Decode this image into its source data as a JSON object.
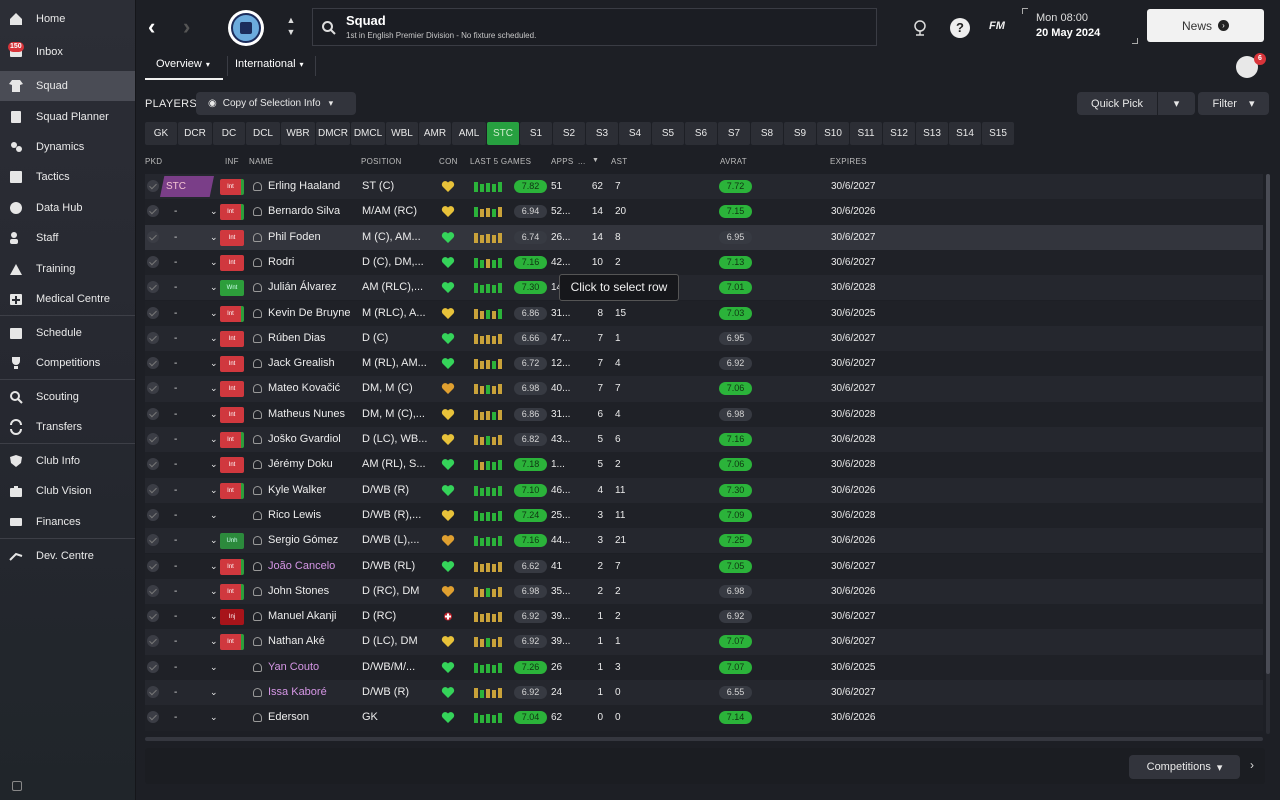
{
  "sidebar": {
    "items": [
      {
        "label": "Home",
        "icon": "home-icon"
      },
      {
        "label": "Inbox",
        "icon": "inbox-icon",
        "badge": "150"
      },
      {
        "label": "Squad",
        "icon": "shirt-icon",
        "active": true
      },
      {
        "label": "Squad Planner",
        "icon": "clipboard-icon"
      },
      {
        "label": "Dynamics",
        "icon": "dynamics-icon"
      },
      {
        "label": "Tactics",
        "icon": "tactics-icon"
      },
      {
        "label": "Data Hub",
        "icon": "data-hub-icon"
      },
      {
        "label": "Staff",
        "icon": "staff-icon"
      },
      {
        "label": "Training",
        "icon": "training-icon"
      },
      {
        "label": "Medical Centre",
        "icon": "medical-icon"
      },
      {
        "label": "Schedule",
        "icon": "calendar-icon"
      },
      {
        "label": "Competitions",
        "icon": "trophy-icon"
      },
      {
        "label": "Scouting",
        "icon": "search-icon"
      },
      {
        "label": "Transfers",
        "icon": "transfer-icon"
      },
      {
        "label": "Club Info",
        "icon": "shield-icon"
      },
      {
        "label": "Club Vision",
        "icon": "briefcase-icon"
      },
      {
        "label": "Finances",
        "icon": "money-icon"
      },
      {
        "label": "Dev. Centre",
        "icon": "dev-centre-icon"
      }
    ]
  },
  "header": {
    "title": "Squad",
    "subtitle": "1st in English Premier Division - No fixture scheduled.",
    "date_line1": "Mon 08:00",
    "date_line2": "20 May 2024",
    "news_label": "News",
    "fm_label": "FM",
    "help_label": "?",
    "avatar_badge": "6"
  },
  "tabs": [
    {
      "label": "Overview"
    },
    {
      "label": "International"
    }
  ],
  "toolbar": {
    "players_label": "PLAYERS",
    "view_label": "Copy of Selection Info",
    "quick_pick_label": "Quick Pick",
    "filter_label": "Filter"
  },
  "positions": [
    "GK",
    "DCR",
    "DC",
    "DCL",
    "WBR",
    "DMCR",
    "DMCL",
    "WBL",
    "AMR",
    "AML",
    "STC",
    "S1",
    "S2",
    "S3",
    "S4",
    "S5",
    "S6",
    "S7",
    "S8",
    "S9",
    "S10",
    "S11",
    "S12",
    "S13",
    "S14",
    "S15"
  ],
  "active_position": "STC",
  "columns": {
    "pkd": "PKD",
    "inf": "INF",
    "name": "NAME",
    "position": "POSITION",
    "con": "CON",
    "last5": "LAST 5 GAMES",
    "apps": "APPS",
    "gls": "...",
    "ast": "AST",
    "avrat": "AVRAT",
    "expires": "EXPIRES"
  },
  "tooltip": "Click to select row",
  "colors": {
    "accent_green": "#2bb33a",
    "int_red": "#d0383e",
    "loan_purple": "#d596e5"
  },
  "players": [
    {
      "sel": "STC",
      "inf": "Int",
      "name": "Erling Haaland",
      "pos": "ST (C)",
      "con": "gold",
      "form": [
        "g",
        "g",
        "g",
        "g",
        "g"
      ],
      "rating": "7.82",
      "rg": true,
      "apps": "51",
      "gls": "62",
      "ast": "7",
      "avrat": "7.72",
      "ag": true,
      "exp": "30/6/2027"
    },
    {
      "sel": "-",
      "inf": "Int",
      "name": "Bernardo Silva",
      "pos": "M/AM (RC)",
      "con": "gold",
      "form": [
        "g",
        "o",
        "o",
        "g",
        "o"
      ],
      "rating": "6.94",
      "rg": false,
      "apps": "52...",
      "gls": "14",
      "ast": "20",
      "avrat": "7.15",
      "ag": true,
      "exp": "30/6/2026"
    },
    {
      "sel": "-",
      "inf": "Int",
      "name": "Phil Foden",
      "pos": "M (C), AM...",
      "con": "green",
      "form": [
        "o",
        "o",
        "o",
        "o",
        "o"
      ],
      "rating": "6.74",
      "rg": false,
      "apps": "26...",
      "gls": "14",
      "ast": "8",
      "avrat": "6.95",
      "ag": false,
      "exp": "30/6/2027"
    },
    {
      "sel": "-",
      "inf": "Int",
      "name": "Rodri",
      "pos": "D (C), DM,...",
      "con": "green",
      "form": [
        "g",
        "g",
        "o",
        "g",
        "g"
      ],
      "rating": "7.16",
      "rg": true,
      "apps": "42...",
      "gls": "10",
      "ast": "2",
      "avrat": "7.13",
      "ag": true,
      "exp": "30/6/2027"
    },
    {
      "sel": "-",
      "inf": "Wnt",
      "name": "Julián Álvarez",
      "pos": "AM (RLC),...",
      "con": "green",
      "form": [
        "g",
        "g",
        "g",
        "g",
        "g"
      ],
      "rating": "7.30",
      "rg": true,
      "apps": "14...",
      "gls": "",
      "ast": "",
      "avrat": "7.01",
      "ag": true,
      "exp": "30/6/2028"
    },
    {
      "sel": "-",
      "inf": "Int",
      "name": "Kevin De Bruyne",
      "pos": "M (RLC), A...",
      "con": "gold",
      "form": [
        "o",
        "o",
        "g",
        "o",
        "g"
      ],
      "rating": "6.86",
      "rg": false,
      "apps": "31...",
      "gls": "8",
      "ast": "15",
      "avrat": "7.03",
      "ag": true,
      "exp": "30/6/2025"
    },
    {
      "sel": "-",
      "inf": "Int",
      "name": "Rúben Dias",
      "pos": "D (C)",
      "con": "green",
      "form": [
        "o",
        "o",
        "o",
        "o",
        "o"
      ],
      "rating": "6.66",
      "rg": false,
      "apps": "47...",
      "gls": "7",
      "ast": "1",
      "avrat": "6.95",
      "ag": false,
      "exp": "30/6/2027"
    },
    {
      "sel": "-",
      "inf": "Int",
      "name": "Jack Grealish",
      "pos": "M (RL), AM...",
      "con": "green",
      "form": [
        "o",
        "o",
        "o",
        "g",
        "o"
      ],
      "rating": "6.72",
      "rg": false,
      "apps": "12...",
      "gls": "7",
      "ast": "4",
      "avrat": "6.92",
      "ag": false,
      "exp": "30/6/2027"
    },
    {
      "sel": "-",
      "inf": "Int",
      "name": "Mateo Kovačić",
      "pos": "DM, M (C)",
      "con": "orange",
      "form": [
        "o",
        "o",
        "g",
        "o",
        "o"
      ],
      "rating": "6.98",
      "rg": false,
      "apps": "40...",
      "gls": "7",
      "ast": "7",
      "avrat": "7.06",
      "ag": true,
      "exp": "30/6/2027"
    },
    {
      "sel": "-",
      "inf": "Int",
      "name": "Matheus Nunes",
      "pos": "DM, M (C),...",
      "con": "gold",
      "form": [
        "o",
        "o",
        "o",
        "g",
        "o"
      ],
      "rating": "6.86",
      "rg": false,
      "apps": "31...",
      "gls": "6",
      "ast": "4",
      "avrat": "6.98",
      "ag": false,
      "exp": "30/6/2028"
    },
    {
      "sel": "-",
      "inf": "Int",
      "name": "Joško Gvardiol",
      "pos": "D (LC), WB...",
      "con": "gold",
      "form": [
        "o",
        "o",
        "g",
        "o",
        "o"
      ],
      "rating": "6.82",
      "rg": false,
      "apps": "43...",
      "gls": "5",
      "ast": "6",
      "avrat": "7.16",
      "ag": true,
      "exp": "30/6/2028"
    },
    {
      "sel": "-",
      "inf": "Int",
      "name": "Jérémy Doku",
      "pos": "AM (RL), S...",
      "con": "green",
      "form": [
        "g",
        "o",
        "g",
        "g",
        "g"
      ],
      "rating": "7.18",
      "rg": true,
      "apps": "1...",
      "gls": "5",
      "ast": "2",
      "avrat": "7.06",
      "ag": true,
      "exp": "30/6/2028"
    },
    {
      "sel": "-",
      "inf": "Int",
      "name": "Kyle Walker",
      "pos": "D/WB (R)",
      "con": "green",
      "form": [
        "g",
        "g",
        "g",
        "g",
        "g"
      ],
      "rating": "7.10",
      "rg": true,
      "apps": "46...",
      "gls": "4",
      "ast": "11",
      "avrat": "7.30",
      "ag": true,
      "exp": "30/6/2026"
    },
    {
      "sel": "-",
      "inf": "",
      "name": "Rico Lewis",
      "pos": "D/WB (R),...",
      "con": "gold",
      "form": [
        "g",
        "g",
        "g",
        "g",
        "g"
      ],
      "rating": "7.24",
      "rg": true,
      "apps": "25...",
      "gls": "3",
      "ast": "11",
      "avrat": "7.09",
      "ag": true,
      "exp": "30/6/2028"
    },
    {
      "sel": "-",
      "inf": "Unh",
      "name": "Sergio Gómez",
      "pos": "D/WB (L),...",
      "con": "orange",
      "form": [
        "g",
        "g",
        "g",
        "g",
        "g"
      ],
      "rating": "7.16",
      "rg": true,
      "apps": "44...",
      "gls": "3",
      "ast": "21",
      "avrat": "7.25",
      "ag": true,
      "exp": "30/6/2026"
    },
    {
      "sel": "-",
      "inf": "Int",
      "name": "João Cancelo",
      "pos": "D/WB (RL)",
      "con": "green",
      "form": [
        "o",
        "o",
        "o",
        "o",
        "o"
      ],
      "rating": "6.62",
      "rg": false,
      "apps": "41",
      "gls": "2",
      "ast": "7",
      "avrat": "7.05",
      "ag": true,
      "exp": "30/6/2027",
      "loan": true
    },
    {
      "sel": "-",
      "inf": "Int",
      "name": "John Stones",
      "pos": "D (RC), DM",
      "con": "orange",
      "form": [
        "o",
        "o",
        "g",
        "o",
        "o"
      ],
      "rating": "6.98",
      "rg": false,
      "apps": "35...",
      "gls": "2",
      "ast": "2",
      "avrat": "6.98",
      "ag": false,
      "exp": "30/6/2026"
    },
    {
      "sel": "-",
      "inf": "Inj",
      "name": "Manuel Akanji",
      "pos": "D (RC)",
      "con": "injured",
      "form": [
        "o",
        "o",
        "o",
        "o",
        "o"
      ],
      "rating": "6.92",
      "rg": false,
      "apps": "39...",
      "gls": "1",
      "ast": "2",
      "avrat": "6.92",
      "ag": false,
      "exp": "30/6/2027"
    },
    {
      "sel": "-",
      "inf": "Int",
      "name": "Nathan Aké",
      "pos": "D (LC), DM",
      "con": "gold",
      "form": [
        "o",
        "o",
        "g",
        "o",
        "o"
      ],
      "rating": "6.92",
      "rg": false,
      "apps": "39...",
      "gls": "1",
      "ast": "1",
      "avrat": "7.07",
      "ag": true,
      "exp": "30/6/2027"
    },
    {
      "sel": "-",
      "inf": "",
      "name": "Yan Couto",
      "pos": "D/WB/M/...",
      "con": "green",
      "form": [
        "g",
        "g",
        "g",
        "g",
        "g"
      ],
      "rating": "7.26",
      "rg": true,
      "apps": "26",
      "gls": "1",
      "ast": "3",
      "avrat": "7.07",
      "ag": true,
      "exp": "30/6/2025",
      "loan": true
    },
    {
      "sel": "-",
      "inf": "",
      "name": "Issa Kaboré",
      "pos": "D/WB (R)",
      "con": "green",
      "form": [
        "o",
        "g",
        "o",
        "o",
        "o"
      ],
      "rating": "6.92",
      "rg": false,
      "apps": "24",
      "gls": "1",
      "ast": "0",
      "avrat": "6.55",
      "ag": false,
      "exp": "30/6/2027",
      "loan": true
    },
    {
      "sel": "-",
      "inf": "",
      "name": "Ederson",
      "pos": "GK",
      "con": "green",
      "form": [
        "g",
        "g",
        "g",
        "g",
        "g"
      ],
      "rating": "7.04",
      "rg": true,
      "apps": "62",
      "gls": "0",
      "ast": "0",
      "avrat": "7.14",
      "ag": true,
      "exp": "30/6/2026"
    }
  ],
  "footer": {
    "competitions_label": "Competitions"
  }
}
